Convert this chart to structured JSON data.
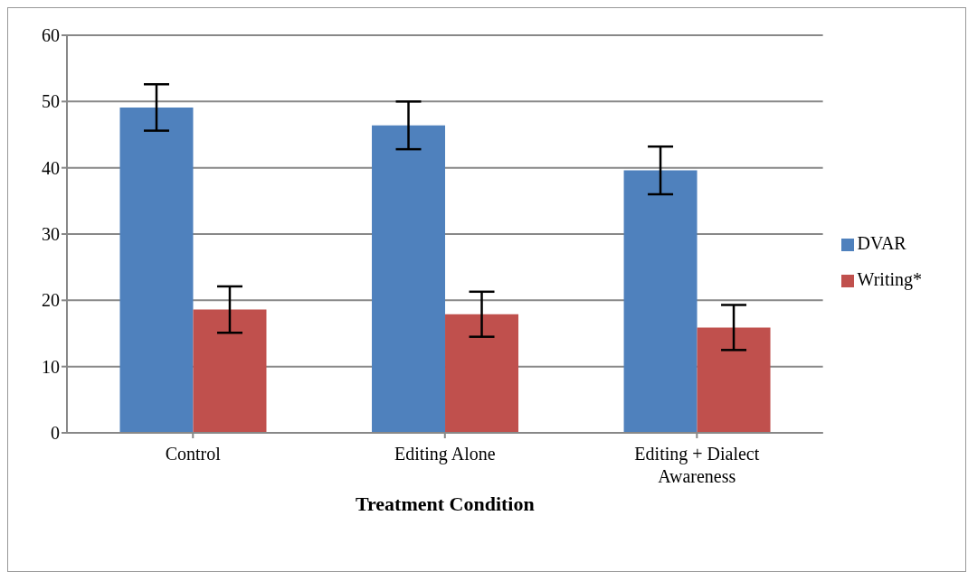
{
  "chart_data": {
    "type": "bar",
    "xlabel": "Treatment Condition",
    "categories": [
      "Control",
      "Editing Alone",
      "Editing + Dialect Awareness"
    ],
    "series": [
      {
        "name": "DVAR",
        "color": "#4f81bd",
        "values": [
          49.1,
          46.4,
          39.6
        ],
        "errors": [
          3.5,
          3.6,
          3.6
        ]
      },
      {
        "name": "Writing*",
        "color": "#c0504d",
        "values": [
          18.6,
          17.9,
          15.9
        ],
        "errors": [
          3.5,
          3.4,
          3.4
        ]
      }
    ],
    "ylim": [
      0,
      60
    ],
    "yticks": [
      0,
      10,
      20,
      30,
      40,
      50,
      60
    ],
    "grid": "y",
    "legend": "right"
  }
}
